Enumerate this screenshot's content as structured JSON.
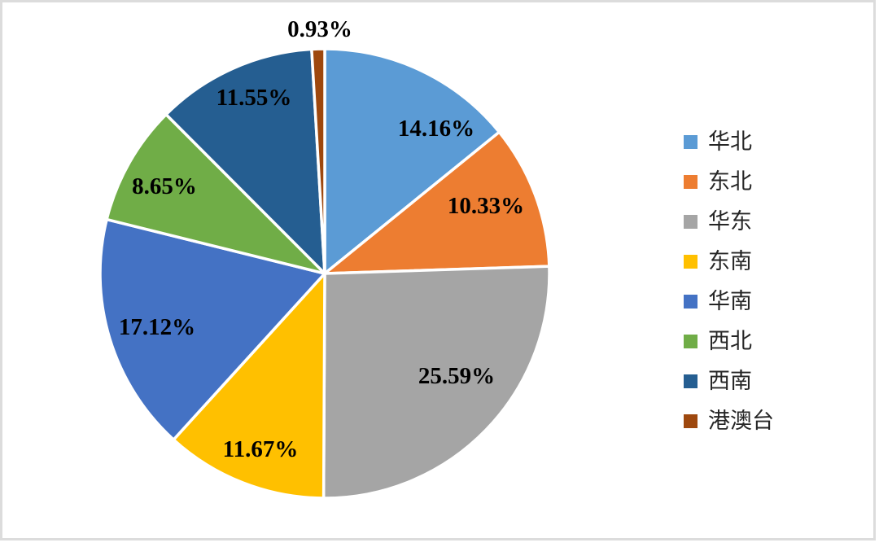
{
  "chart_data": {
    "type": "pie",
    "title": "",
    "legend_position": "right",
    "start_angle_deg": 0,
    "direction": "clockwise",
    "value_unit": "percent",
    "series": [
      {
        "label": "华北",
        "value": 14.16,
        "display": "14.16%",
        "color": "#5B9BD5"
      },
      {
        "label": "东北",
        "value": 10.33,
        "display": "10.33%",
        "color": "#ED7D31"
      },
      {
        "label": "华东",
        "value": 25.59,
        "display": "25.59%",
        "color": "#A5A5A5"
      },
      {
        "label": "东南",
        "value": 11.67,
        "display": "11.67%",
        "color": "#FFC000"
      },
      {
        "label": "华南",
        "value": 17.12,
        "display": "17.12%",
        "color": "#4472C4"
      },
      {
        "label": "西北",
        "value": 8.65,
        "display": "8.65%",
        "color": "#70AD47"
      },
      {
        "label": "西南",
        "value": 11.55,
        "display": "11.55%",
        "color": "#255E91"
      },
      {
        "label": "港澳台",
        "value": 0.93,
        "display": "0.93%",
        "color": "#9E480E"
      }
    ],
    "slice_border_color": "#FFFFFF"
  }
}
